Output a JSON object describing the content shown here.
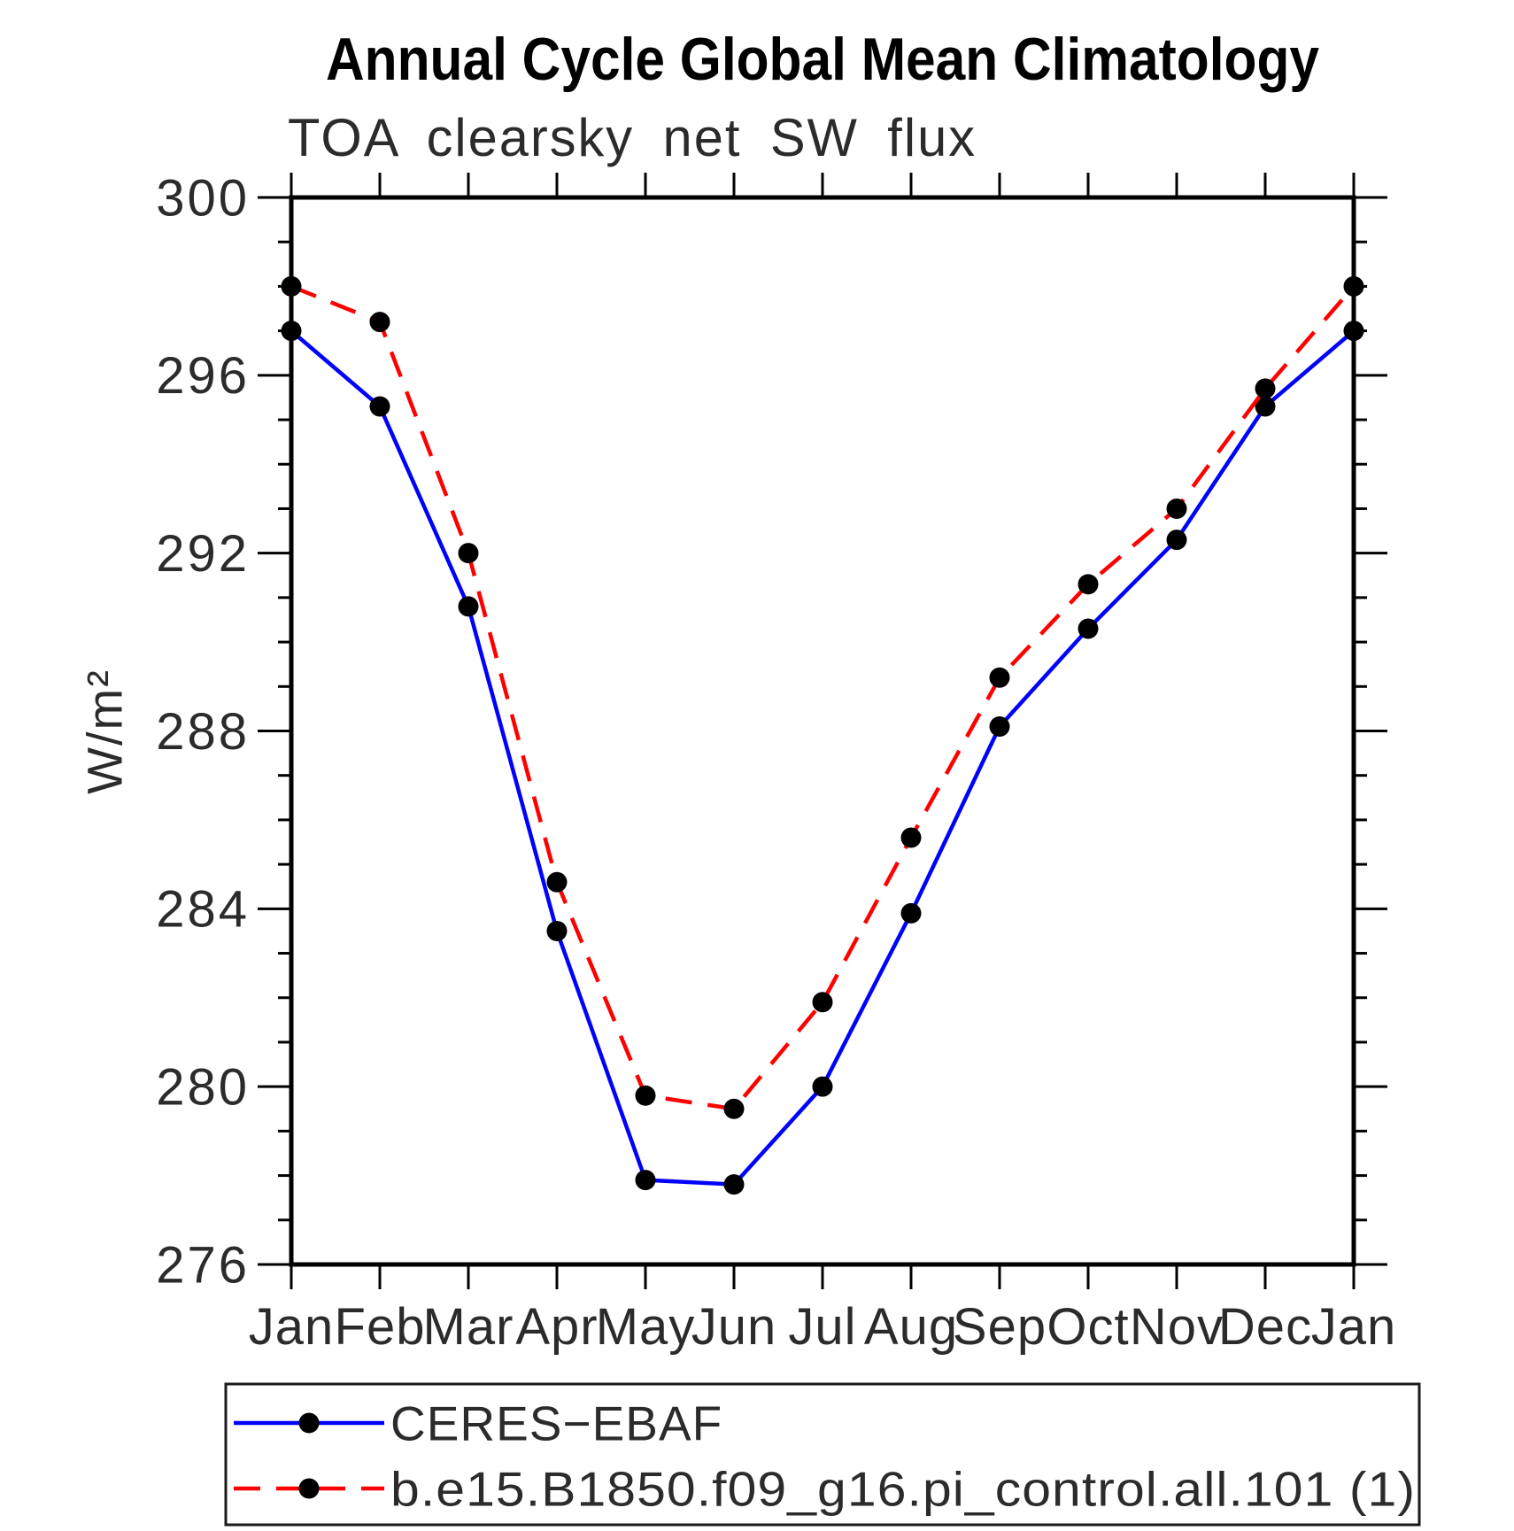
{
  "chart_data": {
    "type": "line",
    "title": "Annual Cycle Global Mean Climatology",
    "subtitle": "TOA clearsky net SW flux",
    "ylabel": "W/m²",
    "xlabel": "",
    "categories": [
      "Jan",
      "Feb",
      "Mar",
      "Apr",
      "May",
      "Jun",
      "Jul",
      "Aug",
      "Sep",
      "Oct",
      "Nov",
      "Dec",
      "Jan"
    ],
    "ylim": [
      276,
      300
    ],
    "y_major_step": 4,
    "y_minor_step": 1,
    "y_tick_labels": [
      "300",
      "296",
      "292",
      "288",
      "284",
      "280",
      "276"
    ],
    "grid": false,
    "legend_position": "bottom-left-box",
    "marker_color": "#000000",
    "series": [
      {
        "name": "CERES−EBAF",
        "color": "#0000ff",
        "style": "solid",
        "marker": "circle",
        "values": [
          297.0,
          295.3,
          290.8,
          283.5,
          277.9,
          277.8,
          280.0,
          283.9,
          288.1,
          290.3,
          292.3,
          295.3,
          297.0
        ]
      },
      {
        "name": "b.e15.B1850.f09_g16.pi_control.all.101 (1)",
        "color": "#ff0000",
        "style": "dashed",
        "marker": "circle",
        "values": [
          298.0,
          297.2,
          292.0,
          284.6,
          279.8,
          279.5,
          281.9,
          285.6,
          289.2,
          291.3,
          293.0,
          295.7,
          298.0
        ]
      }
    ]
  }
}
